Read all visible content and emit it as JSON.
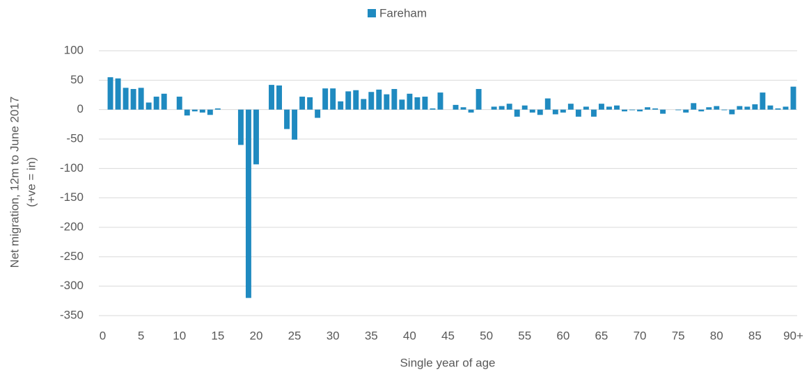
{
  "chart_data": {
    "type": "bar",
    "ylabel": [
      "Net migration, 12m to June 2017",
      "(+ve = in)"
    ],
    "xlabel": "Single year of age",
    "categories": [
      0,
      null,
      null,
      null,
      null,
      5,
      null,
      null,
      null,
      null,
      10,
      null,
      null,
      null,
      null,
      15,
      null,
      null,
      null,
      null,
      20,
      null,
      null,
      null,
      null,
      25,
      null,
      null,
      null,
      null,
      30,
      null,
      null,
      null,
      null,
      35,
      null,
      null,
      null,
      null,
      40,
      null,
      null,
      null,
      null,
      45,
      null,
      null,
      null,
      null,
      50,
      null,
      null,
      null,
      null,
      55,
      null,
      null,
      null,
      null,
      60,
      null,
      null,
      null,
      null,
      65,
      null,
      null,
      null,
      null,
      70,
      null,
      null,
      null,
      null,
      75,
      null,
      null,
      null,
      null,
      80,
      null,
      null,
      null,
      null,
      85,
      null,
      null,
      null,
      null,
      "90+"
    ],
    "series": [
      {
        "name": "Fareham",
        "color": "#1f8ac0",
        "values": [
          0,
          55,
          53,
          37,
          35,
          37,
          12,
          22,
          27,
          0,
          22,
          -10,
          -3,
          -5,
          -9,
          2,
          0,
          0,
          -60,
          -320,
          -93,
          0,
          42,
          41,
          -33,
          -51,
          22,
          21,
          -14,
          36,
          36,
          14,
          31,
          33,
          18,
          30,
          34,
          26,
          35,
          17,
          27,
          21,
          22,
          2,
          29,
          0,
          8,
          4,
          -5,
          35,
          0,
          5,
          6,
          10,
          -12,
          7,
          -5,
          -9,
          19,
          -8,
          -5,
          10,
          -12,
          5,
          -12,
          10,
          5,
          7,
          -3,
          -1,
          -3,
          4,
          2,
          -7,
          0,
          -1,
          -5,
          11,
          -3,
          4,
          6,
          -1,
          -8,
          6,
          5,
          9,
          29,
          7,
          2,
          5,
          39
        ]
      }
    ],
    "ylim": [
      -350,
      100
    ],
    "yticks": [
      -350,
      -300,
      -250,
      -200,
      -150,
      -100,
      -50,
      0,
      50,
      100
    ],
    "grid": true,
    "legend": "top"
  }
}
